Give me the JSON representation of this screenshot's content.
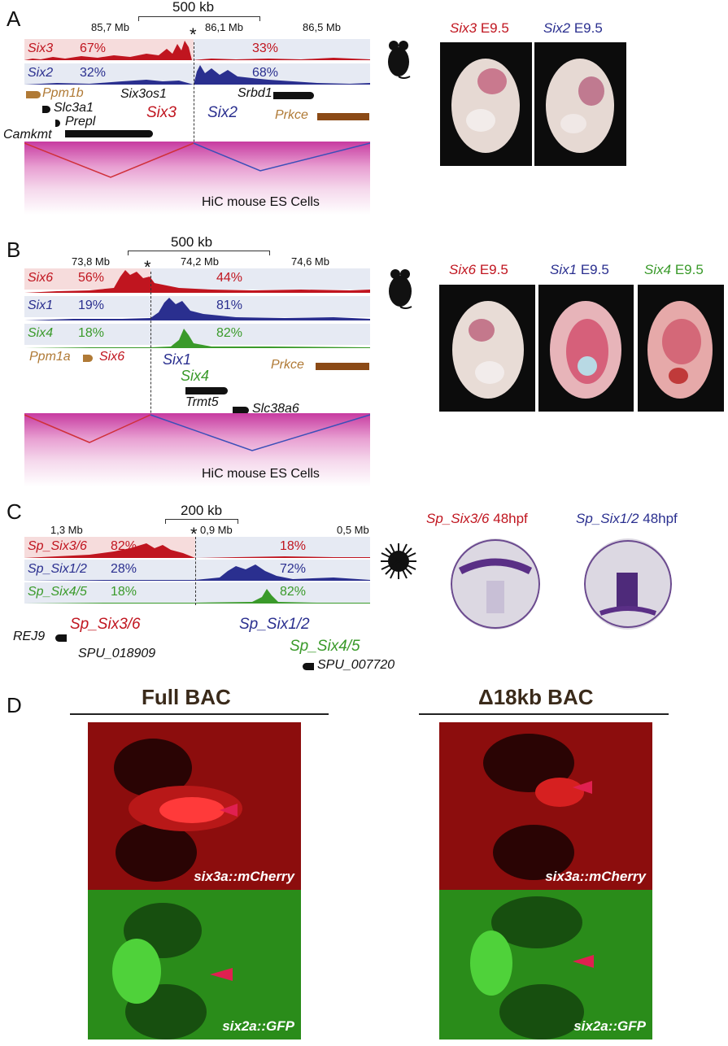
{
  "panels": {
    "A": {
      "label": "A",
      "scale_label": "500 kb",
      "ticks": [
        "85,7 Mb",
        "86,1 Mb",
        "86,5 Mb"
      ],
      "star": "*",
      "tracks": [
        {
          "name": "Six3",
          "left_pct": "67%",
          "right_pct": "33%",
          "color": "#c0151f"
        },
        {
          "name": "Six2",
          "left_pct": "32%",
          "right_pct": "68%",
          "color": "#2a2f8f"
        }
      ],
      "genes": [
        "Ppm1b",
        "Slc3a1",
        "Prepl",
        "Camkmt",
        "Six3os1",
        "Six3",
        "Six2",
        "Srbd1",
        "Prkce"
      ],
      "hic_label": "HiC mouse ES Cells",
      "captions": [
        {
          "gene": "Six3",
          "stage": "E9.5",
          "color": "#c0151f"
        },
        {
          "gene": "Six2",
          "stage": "E9.5",
          "color": "#2a2f8f"
        }
      ]
    },
    "B": {
      "label": "B",
      "scale_label": "500 kb",
      "ticks": [
        "73,8 Mb",
        "74,2 Mb",
        "74,6 Mb"
      ],
      "star": "*",
      "tracks": [
        {
          "name": "Six6",
          "left_pct": "56%",
          "right_pct": "44%",
          "color": "#c0151f"
        },
        {
          "name": "Six1",
          "left_pct": "19%",
          "right_pct": "81%",
          "color": "#2a2f8f"
        },
        {
          "name": "Six4",
          "left_pct": "18%",
          "right_pct": "82%",
          "color": "#3a9a2a"
        }
      ],
      "genes": [
        "Ppm1a",
        "Six6",
        "Six1",
        "Six4",
        "Prkce",
        "Trmt5",
        "Slc38a6"
      ],
      "hic_label": "HiC mouse ES Cells",
      "captions": [
        {
          "gene": "Six6",
          "stage": "E9.5",
          "color": "#c0151f"
        },
        {
          "gene": "Six1",
          "stage": "E9.5",
          "color": "#2a2f8f"
        },
        {
          "gene": "Six4",
          "stage": "E9.5",
          "color": "#3a9a2a"
        }
      ]
    },
    "C": {
      "label": "C",
      "scale_label": "200 kb",
      "ticks": [
        "1,3 Mb",
        "0,9 Mb",
        "0,5 Mb"
      ],
      "star": "*",
      "tracks": [
        {
          "name": "Sp_Six3/6",
          "left_pct": "82%",
          "right_pct": "18%",
          "color": "#c0151f"
        },
        {
          "name": "Sp_Six1/2",
          "left_pct": "28%",
          "right_pct": "72%",
          "color": "#2a2f8f"
        },
        {
          "name": "Sp_Six4/5",
          "left_pct": "18%",
          "right_pct": "82%",
          "color": "#3a9a2a"
        }
      ],
      "genes": [
        "REJ9",
        "Sp_Six3/6",
        "SPU_018909",
        "Sp_Six1/2",
        "Sp_Six4/5",
        "SPU_007720"
      ],
      "captions": [
        {
          "gene": "Sp_Six3/6",
          "stage": "48hpf",
          "color": "#c0151f"
        },
        {
          "gene": "Sp_Six1/2",
          "stage": "48hpf",
          "color": "#2a2f8f"
        }
      ]
    },
    "D": {
      "label": "D",
      "col_titles": [
        "Full BAC",
        "Δ18kb BAC"
      ],
      "row_labels": [
        "six3a::mCherry",
        "six2a::GFP"
      ]
    }
  }
}
